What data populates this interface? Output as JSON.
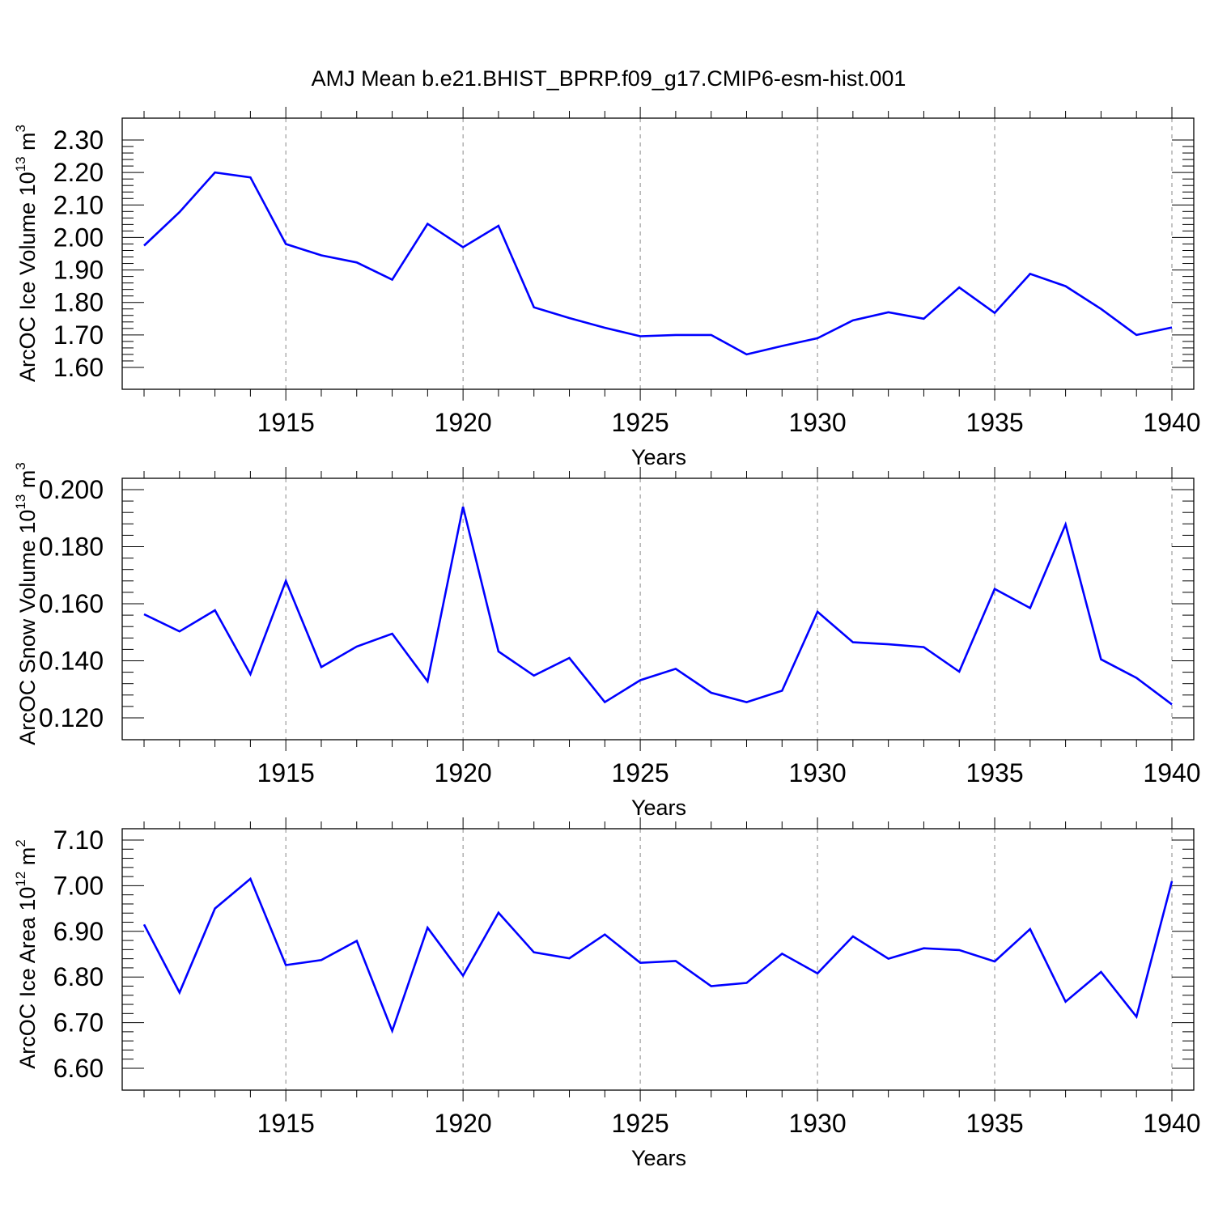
{
  "title": "AMJ Mean b.e21.BHIST_BPRP.f09_g17.CMIP6-esm-hist.001",
  "colors": {
    "line": "#0000ff",
    "axis": "#000000",
    "grid": "#888888"
  },
  "chart_data": [
    {
      "type": "line",
      "ylabel": "ArcOC Ice Volume 10",
      "ylabel_exp": "13",
      "ylabel_unit": "m",
      "ylabel_unit_exp": "3",
      "xlabel": "Years",
      "xlim": [
        1911,
        1940
      ],
      "ylim": [
        1.6,
        2.3
      ],
      "yticks": [
        "1.60",
        "1.70",
        "1.80",
        "1.90",
        "2.00",
        "2.10",
        "2.20",
        "2.30"
      ],
      "xticks": [
        "1915",
        "1920",
        "1925",
        "1930",
        "1935",
        "1940"
      ],
      "x": [
        1911,
        1912,
        1913,
        1914,
        1915,
        1916,
        1917,
        1918,
        1919,
        1920,
        1921,
        1922,
        1923,
        1924,
        1925,
        1926,
        1927,
        1928,
        1929,
        1930,
        1931,
        1932,
        1933,
        1934,
        1935,
        1936,
        1937,
        1938,
        1939,
        1940
      ],
      "values": [
        1.975,
        2.078,
        2.2,
        2.185,
        1.98,
        1.945,
        1.923,
        1.87,
        2.042,
        1.97,
        2.036,
        1.785,
        1.752,
        1.722,
        1.696,
        1.7,
        1.7,
        1.64,
        1.666,
        1.69,
        1.745,
        1.77,
        1.75,
        1.846,
        1.768,
        1.888,
        1.85,
        1.78,
        1.7,
        1.723
      ]
    },
    {
      "type": "line",
      "ylabel": "ArcOC Snow Volume 10",
      "ylabel_exp": "13",
      "ylabel_unit": "m",
      "ylabel_unit_exp": "3",
      "xlabel": "Years",
      "xlim": [
        1911,
        1940
      ],
      "ylim": [
        0.12,
        0.2
      ],
      "yticks": [
        "0.120",
        "0.140",
        "0.160",
        "0.180",
        "0.200"
      ],
      "xticks": [
        "1915",
        "1920",
        "1925",
        "1930",
        "1935",
        "1940"
      ],
      "x": [
        1911,
        1912,
        1913,
        1914,
        1915,
        1916,
        1917,
        1918,
        1919,
        1920,
        1921,
        1922,
        1923,
        1924,
        1925,
        1926,
        1927,
        1928,
        1929,
        1930,
        1931,
        1932,
        1933,
        1934,
        1935,
        1936,
        1937,
        1938,
        1939,
        1940
      ],
      "values": [
        0.1563,
        0.1503,
        0.1577,
        0.1353,
        0.168,
        0.1378,
        0.145,
        0.1495,
        0.1328,
        0.194,
        0.1433,
        0.1348,
        0.141,
        0.1255,
        0.1332,
        0.1372,
        0.1288,
        0.1255,
        0.1295,
        0.1572,
        0.1465,
        0.1458,
        0.1448,
        0.1362,
        0.1652,
        0.1585,
        0.1878,
        0.1405,
        0.134,
        0.1247
      ]
    },
    {
      "type": "line",
      "ylabel": "ArcOC Ice Area 10",
      "ylabel_exp": "12",
      "ylabel_unit": "m",
      "ylabel_unit_exp": "2",
      "xlabel": "Years",
      "xlim": [
        1911,
        1940
      ],
      "ylim": [
        6.6,
        7.1
      ],
      "yticks": [
        "6.60",
        "6.70",
        "6.80",
        "6.90",
        "7.00",
        "7.10"
      ],
      "xticks": [
        "1915",
        "1920",
        "1925",
        "1930",
        "1935",
        "1940"
      ],
      "x": [
        1911,
        1912,
        1913,
        1914,
        1915,
        1916,
        1917,
        1918,
        1919,
        1920,
        1921,
        1922,
        1923,
        1924,
        1925,
        1926,
        1927,
        1928,
        1929,
        1930,
        1931,
        1932,
        1933,
        1934,
        1935,
        1936,
        1937,
        1938,
        1939,
        1940
      ],
      "values": [
        6.915,
        6.766,
        6.95,
        7.015,
        6.826,
        6.837,
        6.879,
        6.682,
        6.908,
        6.803,
        6.941,
        6.854,
        6.841,
        6.893,
        6.831,
        6.835,
        6.78,
        6.787,
        6.851,
        6.808,
        6.889,
        6.84,
        6.863,
        6.859,
        6.834,
        6.905,
        6.746,
        6.811,
        6.713,
        7.01
      ]
    }
  ]
}
